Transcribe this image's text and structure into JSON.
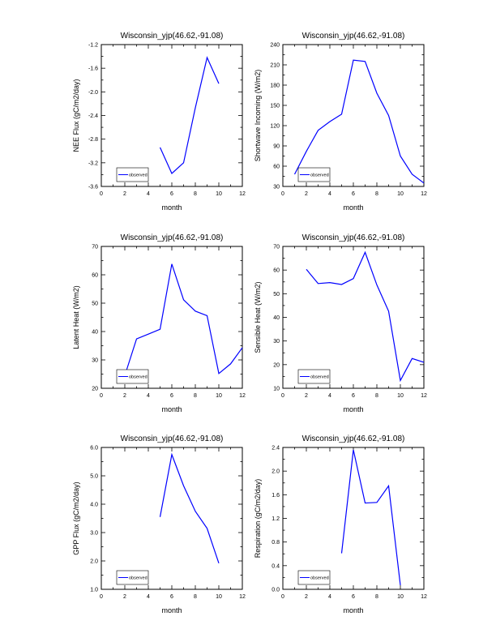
{
  "chart_data": [
    {
      "type": "line",
      "title": "Wisconsin_yjp(46.62,-91.08)",
      "xlabel": "month",
      "ylabel": "NEE Flux (gC/m2/day)",
      "xlim": [
        0,
        12
      ],
      "ylim": [
        -3.6,
        -1.2
      ],
      "xticks": [
        "0",
        "2",
        "4",
        "6",
        "8",
        "10",
        "12"
      ],
      "yticks": [
        "-3.6",
        "-3.2",
        "-2.8",
        "-2.4",
        "-2.0",
        "-1.6",
        "-1.2"
      ],
      "legend_position": "bottom-left",
      "series": [
        {
          "name": "observed",
          "color": "#0000ff",
          "x": [
            5,
            6,
            7,
            8,
            9,
            10
          ],
          "y": [
            -2.94,
            -3.38,
            -3.2,
            -2.27,
            -1.42,
            -1.86
          ]
        }
      ]
    },
    {
      "type": "line",
      "title": "Wisconsin_yjp(46.62,-91.08)",
      "xlabel": "month",
      "ylabel": "Shortwave Incoming (W/m2)",
      "xlim": [
        0,
        12
      ],
      "ylim": [
        30,
        240
      ],
      "xticks": [
        "0",
        "2",
        "4",
        "6",
        "8",
        "10",
        "12"
      ],
      "yticks": [
        "30",
        "60",
        "90",
        "120",
        "150",
        "180",
        "210",
        "240"
      ],
      "legend_position": "bottom-left",
      "series": [
        {
          "name": "observed",
          "color": "#0000ff",
          "x": [
            1,
            2,
            3,
            4,
            5,
            6,
            7,
            8,
            9,
            10,
            11,
            12
          ],
          "y": [
            48,
            82,
            113,
            126,
            137,
            217,
            215,
            168,
            135,
            75,
            48,
            35
          ]
        }
      ]
    },
    {
      "type": "line",
      "title": "Wisconsin_yjp(46.62,-91.08)",
      "xlabel": "month",
      "ylabel": "Latent Heat (W/m2)",
      "xlim": [
        0,
        12
      ],
      "ylim": [
        20,
        70
      ],
      "xticks": [
        "0",
        "2",
        "4",
        "6",
        "8",
        "10",
        "12"
      ],
      "yticks": [
        "20",
        "30",
        "40",
        "50",
        "60",
        "70"
      ],
      "legend_position": "bottom-left",
      "series": [
        {
          "name": "observed",
          "color": "#0000ff",
          "x": [
            2,
            3,
            4,
            5,
            6,
            7,
            8,
            9,
            10,
            11,
            12
          ],
          "y": [
            24.5,
            37.4,
            39.1,
            40.8,
            63.8,
            51.2,
            47.2,
            45.6,
            25.2,
            28.6,
            34.3
          ]
        }
      ]
    },
    {
      "type": "line",
      "title": "Wisconsin_yjp(46.62,-91.08)",
      "xlabel": "month",
      "ylabel": "Sensible Heat (W/m2)",
      "xlim": [
        0,
        12
      ],
      "ylim": [
        10,
        70
      ],
      "xticks": [
        "0",
        "2",
        "4",
        "6",
        "8",
        "10",
        "12"
      ],
      "yticks": [
        "10",
        "20",
        "30",
        "40",
        "50",
        "60",
        "70"
      ],
      "legend_position": "bottom-left",
      "series": [
        {
          "name": "observed",
          "color": "#0000ff",
          "x": [
            2,
            3,
            4,
            5,
            6,
            7,
            8,
            9,
            10,
            11,
            12
          ],
          "y": [
            60.3,
            54.3,
            54.7,
            53.9,
            56.4,
            67.5,
            53.7,
            42.6,
            13.3,
            22.6,
            21.0
          ]
        }
      ]
    },
    {
      "type": "line",
      "title": "Wisconsin_yjp(46.62,-91.08)",
      "xlabel": "month",
      "ylabel": "GPP Flux (gC/m2/day)",
      "xlim": [
        0,
        12
      ],
      "ylim": [
        1.0,
        6.0
      ],
      "xticks": [
        "0",
        "2",
        "4",
        "6",
        "8",
        "10",
        "12"
      ],
      "yticks": [
        "1.0",
        "2.0",
        "3.0",
        "4.0",
        "5.0",
        "6.0"
      ],
      "legend_position": "bottom-left",
      "series": [
        {
          "name": "observed",
          "color": "#0000ff",
          "x": [
            5,
            6,
            7,
            8,
            9,
            10
          ],
          "y": [
            3.55,
            5.75,
            4.65,
            3.75,
            3.15,
            1.92
          ]
        }
      ]
    },
    {
      "type": "line",
      "title": "Wisconsin_yjp(46.62,-91.08)",
      "xlabel": "month",
      "ylabel": "Respiration (gC/m2/day)",
      "xlim": [
        0,
        12
      ],
      "ylim": [
        0.0,
        2.4
      ],
      "xticks": [
        "0",
        "2",
        "4",
        "6",
        "8",
        "10",
        "12"
      ],
      "yticks": [
        "0.0",
        "0.4",
        "0.8",
        "1.2",
        "1.6",
        "2.0",
        "2.4"
      ],
      "legend_position": "bottom-left",
      "series": [
        {
          "name": "observed",
          "color": "#0000ff",
          "x": [
            5,
            6,
            7,
            8,
            9,
            10
          ],
          "y": [
            0.61,
            2.36,
            1.46,
            1.47,
            1.75,
            0.07
          ]
        }
      ]
    }
  ]
}
